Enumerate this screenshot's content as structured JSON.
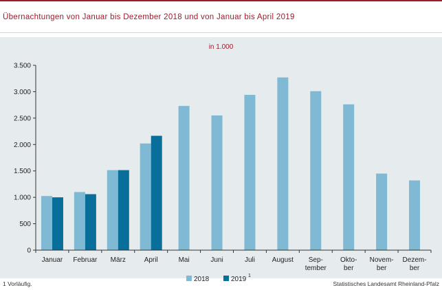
{
  "header": {
    "title": "Übernachtungen von Januar bis Dezember 2018 und von Januar bis April 2019"
  },
  "footer": {
    "footnote": "1 Vorläufig.",
    "source": "Statistisches Landesamt Rheinland-Pfalz"
  },
  "colors": {
    "brand": "#9c1c2b",
    "series_2018": "#80b9d3",
    "series_2019": "#0a6e9b",
    "panel_bg": "#e6ebee"
  },
  "chart_data": {
    "type": "bar",
    "title": "",
    "subtitle": "in 1.000",
    "xlabel": "",
    "ylabel": "",
    "ylim": [
      0,
      3500
    ],
    "yticks": [
      0,
      500,
      1000,
      1500,
      2000,
      2500,
      3000,
      3500
    ],
    "ytick_labels": [
      "0",
      "500",
      "1.000",
      "1.500",
      "2.000",
      "2.500",
      "3.000",
      "3.500"
    ],
    "grid": false,
    "legend_position": "bottom-center",
    "categories": [
      [
        "Januar"
      ],
      [
        "Februar"
      ],
      [
        "März"
      ],
      [
        "April"
      ],
      [
        "Mai"
      ],
      [
        "Juni"
      ],
      [
        "Juli"
      ],
      [
        "August"
      ],
      [
        "Sep-",
        "tember"
      ],
      [
        "Okto-",
        "ber"
      ],
      [
        "Novem-",
        "ber"
      ],
      [
        "Dezem-",
        "ber"
      ]
    ],
    "series": [
      {
        "name": "2018",
        "superscript": "",
        "values": [
          1025,
          1100,
          1515,
          2020,
          2730,
          2550,
          2940,
          3270,
          3010,
          2760,
          1450,
          1320
        ]
      },
      {
        "name": "2019",
        "superscript": "1",
        "values": [
          1000,
          1060,
          1515,
          2165,
          null,
          null,
          null,
          null,
          null,
          null,
          null,
          null
        ]
      }
    ]
  }
}
